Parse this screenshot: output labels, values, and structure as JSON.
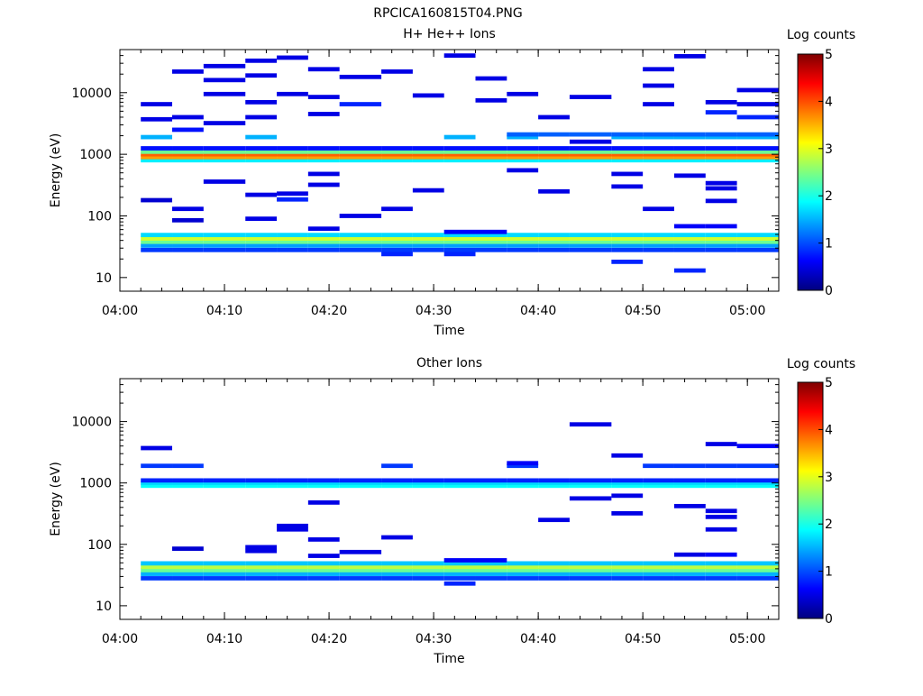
{
  "page_title": "RPCICA160815T04.PNG",
  "colormap": [
    "#00007f",
    "#0000ff",
    "#007fff",
    "#00ffff",
    "#7fff7f",
    "#ffff00",
    "#ff7f00",
    "#ff0000",
    "#7f0000"
  ],
  "chart_data": [
    {
      "type": "heatmap",
      "title": "H+ He++ Ions",
      "xlabel": "Time",
      "ylabel": "Energy (eV)",
      "x_range": [
        "04:00",
        "05:03"
      ],
      "x_ticks": [
        "04:00",
        "04:10",
        "04:20",
        "04:30",
        "04:40",
        "04:50",
        "05:00"
      ],
      "y_scale": "log",
      "y_range": [
        6,
        50000
      ],
      "y_ticks": [
        "10",
        "100",
        "1000",
        "10000"
      ],
      "colorbar": {
        "label": "Log counts",
        "range": [
          0,
          5
        ],
        "ticks": [
          "0",
          "1",
          "2",
          "3",
          "4",
          "5"
        ]
      },
      "time_bin_starts": [
        "04:02",
        "04:05",
        "04:08",
        "04:12",
        "04:15",
        "04:18",
        "04:21",
        "04:25",
        "04:28",
        "04:31",
        "04:34",
        "04:37",
        "04:40",
        "04:43",
        "04:47",
        "04:50",
        "04:53",
        "04:56",
        "04:59",
        "05:03"
      ],
      "bands": [
        {
          "energy": 28,
          "value": 0.9,
          "bins": "all",
          "skip": []
        },
        {
          "energy": 33,
          "value": 1.4,
          "bins": "all",
          "skip": []
        },
        {
          "energy": 38,
          "value": 2.4,
          "bins": "all",
          "skip": []
        },
        {
          "energy": 43,
          "value": 2.9,
          "bins": "all",
          "skip": []
        },
        {
          "energy": 49,
          "value": 1.7,
          "bins": "all",
          "skip": []
        },
        {
          "energy": 55,
          "value": 0.6,
          "bins": [
            9,
            10
          ],
          "skip": []
        },
        {
          "energy": 800,
          "value": 1.8,
          "bins": "all",
          "skip": []
        },
        {
          "energy": 900,
          "value": 3.6,
          "bins": "all",
          "skip": []
        },
        {
          "energy": 1000,
          "value": 3.9,
          "bins": "all",
          "skip": []
        },
        {
          "energy": 1100,
          "value": 2.4,
          "bins": "all",
          "skip": []
        },
        {
          "energy": 1250,
          "value": 0.7,
          "bins": "all",
          "skip": []
        },
        {
          "energy": 1900,
          "value": 1.5,
          "bins": [
            0,
            3,
            9,
            11,
            14,
            15,
            16,
            17,
            18
          ],
          "skip": []
        },
        {
          "energy": 2100,
          "value": 1.1,
          "bins": [
            11,
            12,
            13,
            14,
            15,
            16,
            17,
            18
          ],
          "skip": []
        }
      ],
      "sparse_cells": [
        {
          "bin": 0,
          "energy": 6500,
          "value": 0.5
        },
        {
          "bin": 0,
          "energy": 3700,
          "value": 0.5
        },
        {
          "bin": 0,
          "energy": 180,
          "value": 0.4
        },
        {
          "bin": 1,
          "energy": 22000,
          "value": 0.5
        },
        {
          "bin": 1,
          "energy": 4000,
          "value": 0.5
        },
        {
          "bin": 1,
          "energy": 2500,
          "value": 0.7
        },
        {
          "bin": 1,
          "energy": 130,
          "value": 0.5
        },
        {
          "bin": 1,
          "energy": 85,
          "value": 0.4
        },
        {
          "bin": 2,
          "energy": 27000,
          "value": 0.5
        },
        {
          "bin": 2,
          "energy": 16000,
          "value": 0.5
        },
        {
          "bin": 2,
          "energy": 9500,
          "value": 0.5
        },
        {
          "bin": 2,
          "energy": 3200,
          "value": 0.5
        },
        {
          "bin": 2,
          "energy": 360,
          "value": 0.5
        },
        {
          "bin": 3,
          "energy": 33000,
          "value": 0.5
        },
        {
          "bin": 3,
          "energy": 19000,
          "value": 0.5
        },
        {
          "bin": 3,
          "energy": 7000,
          "value": 0.5
        },
        {
          "bin": 3,
          "energy": 4000,
          "value": 0.5
        },
        {
          "bin": 3,
          "energy": 220,
          "value": 0.5
        },
        {
          "bin": 3,
          "energy": 90,
          "value": 0.5
        },
        {
          "bin": 4,
          "energy": 37000,
          "value": 0.5
        },
        {
          "bin": 4,
          "energy": 9500,
          "value": 0.5
        },
        {
          "bin": 4,
          "energy": 230,
          "value": 0.5
        },
        {
          "bin": 4,
          "energy": 185,
          "value": 0.8
        },
        {
          "bin": 5,
          "energy": 24000,
          "value": 0.5
        },
        {
          "bin": 5,
          "energy": 8500,
          "value": 0.5
        },
        {
          "bin": 5,
          "energy": 4500,
          "value": 0.5
        },
        {
          "bin": 5,
          "energy": 480,
          "value": 0.5
        },
        {
          "bin": 5,
          "energy": 320,
          "value": 0.5
        },
        {
          "bin": 5,
          "energy": 62,
          "value": 0.5
        },
        {
          "bin": 6,
          "energy": 18000,
          "value": 0.5
        },
        {
          "bin": 6,
          "energy": 6500,
          "value": 0.8
        },
        {
          "bin": 6,
          "energy": 100,
          "value": 0.5
        },
        {
          "bin": 7,
          "energy": 22000,
          "value": 0.5
        },
        {
          "bin": 7,
          "energy": 130,
          "value": 0.5
        },
        {
          "bin": 7,
          "energy": 24,
          "value": 0.8
        },
        {
          "bin": 8,
          "energy": 9000,
          "value": 0.5
        },
        {
          "bin": 8,
          "energy": 260,
          "value": 0.5
        },
        {
          "bin": 9,
          "energy": 40000,
          "value": 0.5
        },
        {
          "bin": 9,
          "energy": 24,
          "value": 0.8
        },
        {
          "bin": 10,
          "energy": 17000,
          "value": 0.5
        },
        {
          "bin": 10,
          "energy": 7500,
          "value": 0.5
        },
        {
          "bin": 11,
          "energy": 9500,
          "value": 0.5
        },
        {
          "bin": 11,
          "energy": 550,
          "value": 0.5
        },
        {
          "bin": 12,
          "energy": 4000,
          "value": 0.5
        },
        {
          "bin": 12,
          "energy": 250,
          "value": 0.5
        },
        {
          "bin": 13,
          "energy": 8500,
          "value": 0.5
        },
        {
          "bin": 13,
          "energy": 1600,
          "value": 0.5
        },
        {
          "bin": 14,
          "energy": 480,
          "value": 0.5
        },
        {
          "bin": 14,
          "energy": 300,
          "value": 0.5
        },
        {
          "bin": 14,
          "energy": 18,
          "value": 0.8
        },
        {
          "bin": 15,
          "energy": 24000,
          "value": 0.5
        },
        {
          "bin": 15,
          "energy": 13000,
          "value": 0.5
        },
        {
          "bin": 15,
          "energy": 6500,
          "value": 0.5
        },
        {
          "bin": 15,
          "energy": 130,
          "value": 0.5
        },
        {
          "bin": 16,
          "energy": 39000,
          "value": 0.5
        },
        {
          "bin": 16,
          "energy": 450,
          "value": 0.5
        },
        {
          "bin": 16,
          "energy": 68,
          "value": 0.6
        },
        {
          "bin": 16,
          "energy": 13,
          "value": 0.8
        },
        {
          "bin": 17,
          "energy": 7000,
          "value": 0.5
        },
        {
          "bin": 17,
          "energy": 4800,
          "value": 0.8
        },
        {
          "bin": 17,
          "energy": 340,
          "value": 0.5
        },
        {
          "bin": 17,
          "energy": 280,
          "value": 0.5
        },
        {
          "bin": 17,
          "energy": 175,
          "value": 0.5
        },
        {
          "bin": 17,
          "energy": 68,
          "value": 0.6
        },
        {
          "bin": 18,
          "energy": 11000,
          "value": 0.5
        },
        {
          "bin": 18,
          "energy": 6500,
          "value": 0.5
        },
        {
          "bin": 18,
          "energy": 4000,
          "value": 0.8
        }
      ]
    },
    {
      "type": "heatmap",
      "title": "Other Ions",
      "xlabel": "Time",
      "ylabel": "Energy (eV)",
      "x_range": [
        "04:00",
        "05:03"
      ],
      "x_ticks": [
        "04:00",
        "04:10",
        "04:20",
        "04:30",
        "04:40",
        "04:50",
        "05:00"
      ],
      "y_scale": "log",
      "y_range": [
        6,
        50000
      ],
      "y_ticks": [
        "10",
        "100",
        "1000",
        "10000"
      ],
      "colorbar": {
        "label": "Log counts",
        "range": [
          0,
          5
        ],
        "ticks": [
          "0",
          "1",
          "2",
          "3",
          "4",
          "5"
        ]
      },
      "time_bin_starts": [
        "04:02",
        "04:05",
        "04:08",
        "04:12",
        "04:15",
        "04:18",
        "04:21",
        "04:25",
        "04:28",
        "04:31",
        "04:34",
        "04:37",
        "04:40",
        "04:43",
        "04:47",
        "04:50",
        "04:53",
        "04:56",
        "04:59",
        "05:03"
      ],
      "bands": [
        {
          "energy": 28,
          "value": 0.9,
          "bins": "all",
          "skip": []
        },
        {
          "energy": 33,
          "value": 1.5,
          "bins": "all",
          "skip": []
        },
        {
          "energy": 38,
          "value": 2.4,
          "bins": "all",
          "skip": []
        },
        {
          "energy": 43,
          "value": 2.8,
          "bins": "all",
          "skip": []
        },
        {
          "energy": 49,
          "value": 1.6,
          "bins": "all",
          "skip": []
        },
        {
          "energy": 55,
          "value": 0.6,
          "bins": [
            9,
            10
          ],
          "skip": []
        },
        {
          "energy": 900,
          "value": 1.9,
          "bins": "all",
          "skip": []
        },
        {
          "energy": 1000,
          "value": 1.7,
          "bins": "all",
          "skip": []
        },
        {
          "energy": 1100,
          "value": 0.8,
          "bins": "all",
          "skip": []
        },
        {
          "energy": 1900,
          "value": 0.9,
          "bins": [
            0,
            1,
            7,
            11,
            15,
            16,
            17,
            18
          ],
          "skip": []
        }
      ],
      "sparse_cells": [
        {
          "bin": 0,
          "energy": 3700,
          "value": 0.5
        },
        {
          "bin": 1,
          "energy": 85,
          "value": 0.4
        },
        {
          "bin": 3,
          "energy": 90,
          "value": 0.5
        },
        {
          "bin": 3,
          "energy": 78,
          "value": 0.5
        },
        {
          "bin": 4,
          "energy": 200,
          "value": 0.5
        },
        {
          "bin": 4,
          "energy": 175,
          "value": 0.5
        },
        {
          "bin": 5,
          "energy": 480,
          "value": 0.5
        },
        {
          "bin": 5,
          "energy": 120,
          "value": 0.5
        },
        {
          "bin": 5,
          "energy": 65,
          "value": 0.5
        },
        {
          "bin": 6,
          "energy": 75,
          "value": 0.5
        },
        {
          "bin": 7,
          "energy": 130,
          "value": 0.5
        },
        {
          "bin": 9,
          "energy": 23,
          "value": 0.8
        },
        {
          "bin": 11,
          "energy": 2100,
          "value": 0.6
        },
        {
          "bin": 12,
          "energy": 250,
          "value": 0.5
        },
        {
          "bin": 13,
          "energy": 9000,
          "value": 0.5
        },
        {
          "bin": 13,
          "energy": 560,
          "value": 0.5
        },
        {
          "bin": 14,
          "energy": 2800,
          "value": 0.5
        },
        {
          "bin": 14,
          "energy": 620,
          "value": 0.5
        },
        {
          "bin": 14,
          "energy": 320,
          "value": 0.5
        },
        {
          "bin": 16,
          "energy": 420,
          "value": 0.5
        },
        {
          "bin": 16,
          "energy": 68,
          "value": 0.5
        },
        {
          "bin": 17,
          "energy": 4300,
          "value": 0.5
        },
        {
          "bin": 17,
          "energy": 350,
          "value": 0.5
        },
        {
          "bin": 17,
          "energy": 280,
          "value": 0.5
        },
        {
          "bin": 17,
          "energy": 175,
          "value": 0.5
        },
        {
          "bin": 17,
          "energy": 68,
          "value": 0.6
        },
        {
          "bin": 18,
          "energy": 4000,
          "value": 0.6
        }
      ]
    }
  ]
}
